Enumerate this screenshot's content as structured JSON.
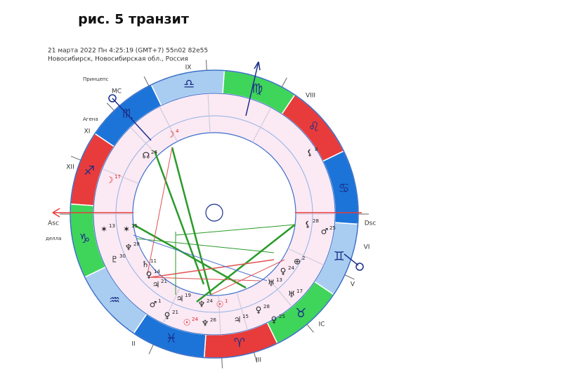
{
  "title": "рис. 5 транзит",
  "header": {
    "line1": "21 марта 2022  Пн   4:25:19 (GMT+7) 55n02  82e55",
    "line2": "Новосибирск, Новосибирская обл., Россия"
  },
  "signs": [
    "♈",
    "♉",
    "♊",
    "♋",
    "♌",
    "♍",
    "♎",
    "♏",
    "♐",
    "♑",
    "♒",
    "♓"
  ],
  "houses": [
    "IX",
    "VIII",
    "Dsc",
    "VI",
    "V",
    "IC",
    "III",
    "II",
    "Asc",
    "XII",
    "XI",
    "MC"
  ],
  "stars": [
    "Принцепс",
    "Агена",
    "делла"
  ],
  "planets": [
    {
      "glyph": "☽",
      "deg": "4",
      "color": "#d22"
    },
    {
      "glyph": "☊",
      "deg": "24",
      "color": "#222"
    },
    {
      "glyph": "☽",
      "deg": "17",
      "color": "#d22"
    },
    {
      "glyph": "⚸",
      "deg": "8",
      "color": "#222"
    },
    {
      "glyph": "✶",
      "deg": "13",
      "color": "#222"
    },
    {
      "glyph": "✶",
      "deg": "15",
      "color": "#222"
    },
    {
      "glyph": "⚸",
      "deg": "28",
      "color": "#222"
    },
    {
      "glyph": "♂",
      "deg": "25",
      "color": "#222"
    },
    {
      "glyph": "♆",
      "deg": "28",
      "color": "#222"
    },
    {
      "glyph": "♇",
      "deg": "30",
      "color": "#222"
    },
    {
      "glyph": "♄",
      "deg": "11",
      "color": "#222"
    },
    {
      "glyph": "⊕",
      "deg": "2",
      "color": "#222"
    },
    {
      "glyph": "♀",
      "deg": "24",
      "color": "#222"
    },
    {
      "glyph": "♀",
      "deg": "14",
      "color": "#222"
    },
    {
      "glyph": "♅",
      "deg": "13",
      "color": "#222"
    },
    {
      "glyph": "♃",
      "deg": "21",
      "color": "#222"
    },
    {
      "glyph": "♅",
      "deg": "17",
      "color": "#222"
    },
    {
      "glyph": "♃",
      "deg": "19",
      "color": "#222"
    },
    {
      "glyph": "♆",
      "deg": "24",
      "color": "#222"
    },
    {
      "glyph": "☉",
      "deg": "1",
      "color": "#d22"
    },
    {
      "glyph": "♀",
      "deg": "28",
      "color": "#222"
    },
    {
      "glyph": "♂",
      "deg": "1",
      "color": "#222"
    },
    {
      "glyph": "♀",
      "deg": "21",
      "color": "#222"
    },
    {
      "glyph": "☉",
      "deg": "24",
      "color": "#d22"
    },
    {
      "glyph": "♆",
      "deg": "26",
      "color": "#222"
    },
    {
      "glyph": "♃",
      "deg": "15",
      "color": "#222"
    },
    {
      "glyph": "♀",
      "deg": "25",
      "color": "#222"
    }
  ]
}
